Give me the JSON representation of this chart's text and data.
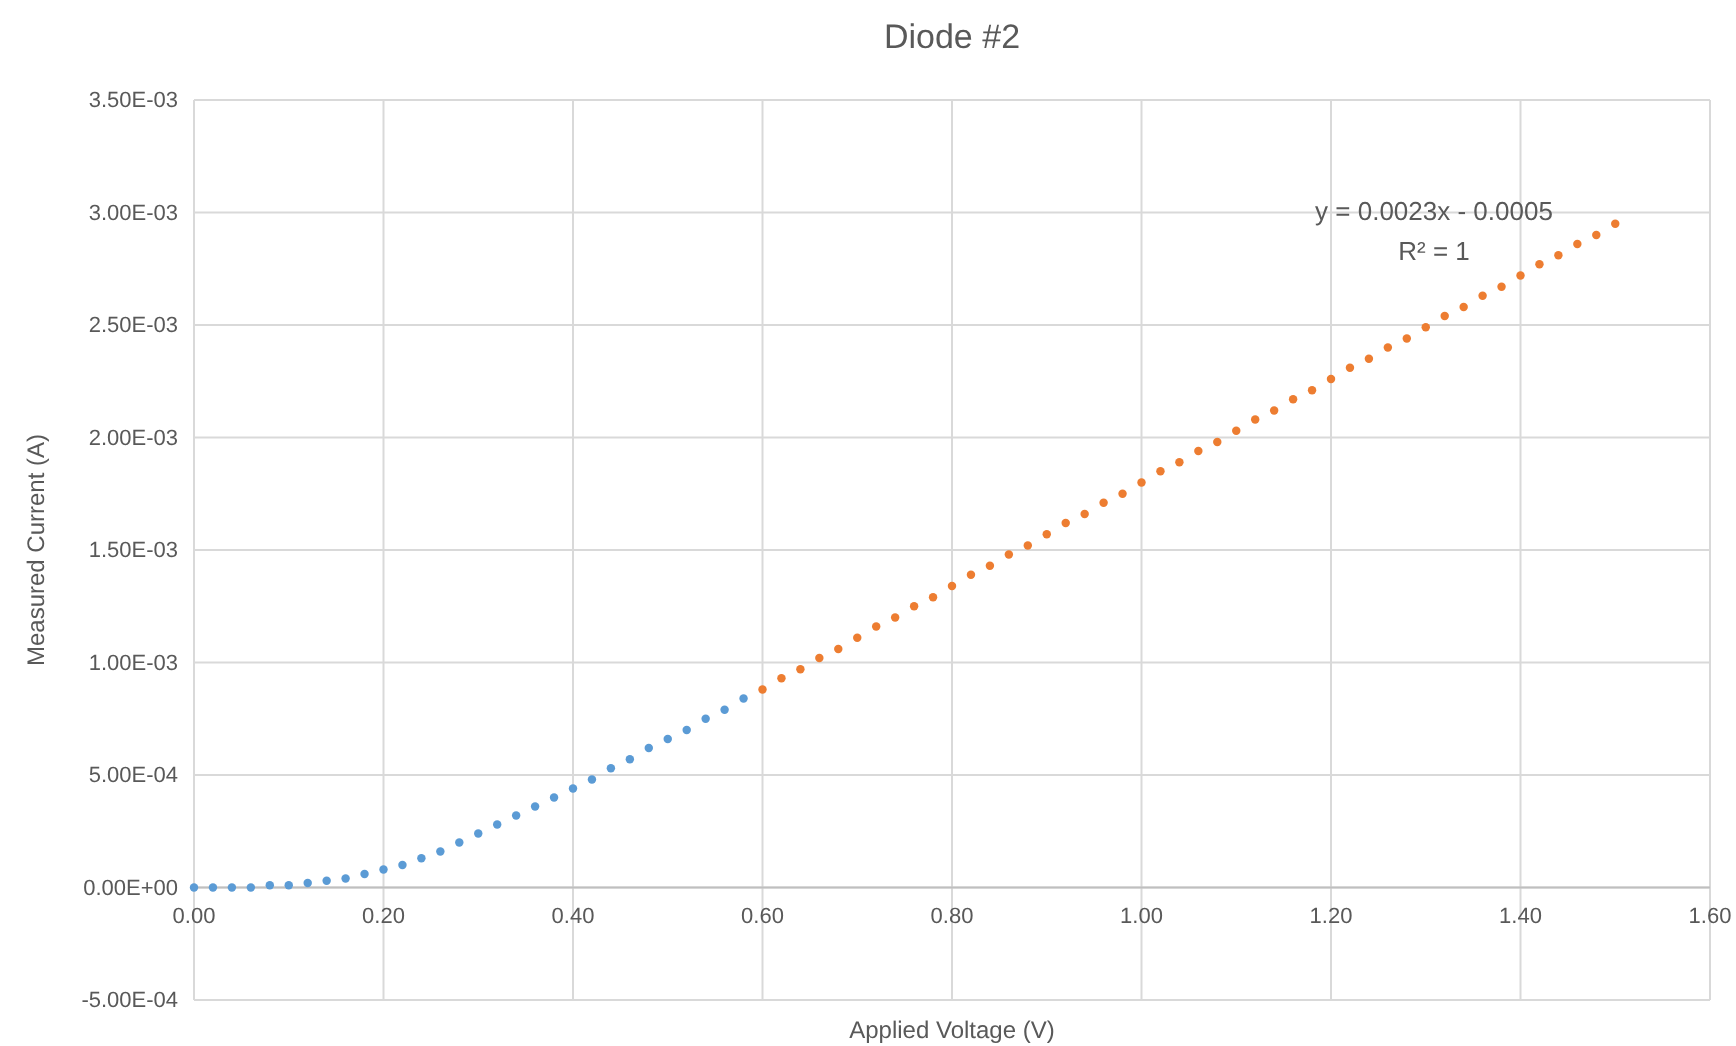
{
  "chart_data": {
    "type": "scatter",
    "title": "Diode #2",
    "xlabel": "Applied Voltage (V)",
    "ylabel": "Measured Current (A)",
    "xlim": [
      0,
      1.6
    ],
    "xticks": [
      {
        "value": 0,
        "label": "0.00"
      },
      {
        "value": 0.2,
        "label": "0.20"
      },
      {
        "value": 0.4,
        "label": "0.40"
      },
      {
        "value": 0.6,
        "label": "0.60"
      },
      {
        "value": 0.8,
        "label": "0.80"
      },
      {
        "value": 1.0,
        "label": "1.00"
      },
      {
        "value": 1.2,
        "label": "1.20"
      },
      {
        "value": 1.4,
        "label": "1.40"
      },
      {
        "value": 1.6,
        "label": "1.60"
      }
    ],
    "ylim": [
      -0.0005,
      0.0035
    ],
    "yticks": [
      {
        "value": -0.0005,
        "label": "-5.00E-04"
      },
      {
        "value": 0,
        "label": "0.00E+00"
      },
      {
        "value": 0.0005,
        "label": "5.00E-04"
      },
      {
        "value": 0.001,
        "label": "1.00E-03"
      },
      {
        "value": 0.0015,
        "label": "1.50E-03"
      },
      {
        "value": 0.002,
        "label": "2.00E-03"
      },
      {
        "value": 0.0025,
        "label": "2.50E-03"
      },
      {
        "value": 0.003,
        "label": "3.00E-03"
      },
      {
        "value": 0.0035,
        "label": "3.50E-03"
      }
    ],
    "grid": true,
    "marker": "circle",
    "annotations": [
      "y = 0.0023x - 0.0005",
      "R² = 1"
    ],
    "series": [
      {
        "color": "#5b9bd5",
        "x": [
          0,
          0.02,
          0.04,
          0.06,
          0.08,
          0.1,
          0.12,
          0.14,
          0.16,
          0.18,
          0.2,
          0.22,
          0.24,
          0.26,
          0.28,
          0.3,
          0.32,
          0.34,
          0.36,
          0.38,
          0.4,
          0.42,
          0.44,
          0.46,
          0.48,
          0.5,
          0.52,
          0.54,
          0.56,
          0.58
        ],
        "values": [
          0,
          0,
          0,
          0,
          1e-05,
          1e-05,
          2e-05,
          3e-05,
          4e-05,
          6e-05,
          8e-05,
          0.0001,
          0.00013,
          0.00016,
          0.0002,
          0.00024,
          0.00028,
          0.00032,
          0.00036,
          0.0004,
          0.00044,
          0.00048,
          0.00053,
          0.00057,
          0.00062,
          0.00066,
          0.0007,
          0.00075,
          0.00079,
          0.00084
        ]
      },
      {
        "color": "#ed7d31",
        "x": [
          0.6,
          0.62,
          0.64,
          0.66,
          0.68,
          0.7,
          0.72,
          0.74,
          0.76,
          0.78,
          0.8,
          0.82,
          0.84,
          0.86,
          0.88,
          0.9,
          0.92,
          0.94,
          0.96,
          0.98,
          1.0,
          1.02,
          1.04,
          1.06,
          1.08,
          1.1,
          1.12,
          1.14,
          1.16,
          1.18,
          1.2,
          1.22,
          1.24,
          1.26,
          1.28,
          1.3,
          1.32,
          1.34,
          1.36,
          1.38,
          1.4,
          1.42,
          1.44,
          1.46,
          1.48,
          1.5
        ],
        "values": [
          0.00088,
          0.00093,
          0.00097,
          0.00102,
          0.00106,
          0.00111,
          0.00116,
          0.0012,
          0.00125,
          0.00129,
          0.00134,
          0.00139,
          0.00143,
          0.00148,
          0.00152,
          0.00157,
          0.00162,
          0.00166,
          0.00171,
          0.00175,
          0.0018,
          0.00185,
          0.00189,
          0.00194,
          0.00198,
          0.00203,
          0.00208,
          0.00212,
          0.00217,
          0.00221,
          0.00226,
          0.00231,
          0.00235,
          0.0024,
          0.00244,
          0.00249,
          0.00254,
          0.00258,
          0.00263,
          0.00267,
          0.00272,
          0.00277,
          0.00281,
          0.00286,
          0.0029,
          0.00295
        ]
      }
    ]
  }
}
